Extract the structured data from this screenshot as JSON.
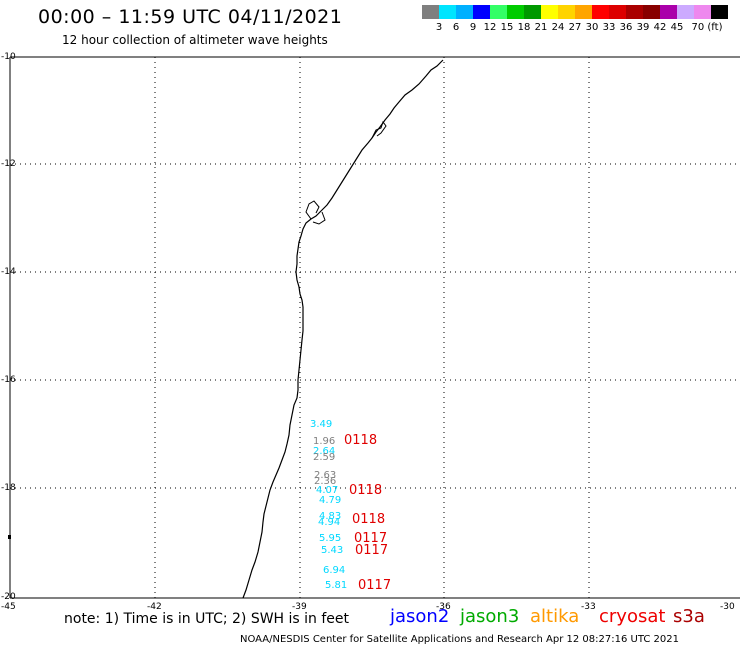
{
  "header": {
    "title": "00:00 – 11:59 UTC 04/11/2021",
    "subtitle": "12 hour collection of altimeter wave heights"
  },
  "scale": {
    "colors": [
      "#7f7f7f",
      "#00e5ff",
      "#00b0ff",
      "#0000ff",
      "#33ff66",
      "#00cc00",
      "#009900",
      "#ffff00",
      "#ffd400",
      "#ffa500",
      "#ff0000",
      "#dd0000",
      "#aa0000",
      "#880000",
      "#aa00aa",
      "#ccaaff",
      "#ee88ee",
      "#000000"
    ],
    "labels": [
      "3",
      "6",
      "9",
      "12",
      "15",
      "18",
      "21",
      "24",
      "27",
      "30",
      "33",
      "36",
      "39",
      "42",
      "45",
      "70 (ft)"
    ]
  },
  "axes": {
    "lat_labels": [
      "-10",
      "-12",
      "-14",
      "-16",
      "-18",
      "-20"
    ],
    "lon_labels": [
      "-45",
      "-42",
      "-39",
      "-36",
      "-33",
      "-30"
    ]
  },
  "observations": [
    {
      "value": "3.49",
      "color": "#00d8ff"
    },
    {
      "value": "1.96",
      "color": "#7f7f7f"
    },
    {
      "value": "2.64",
      "color": "#00d8ff"
    },
    {
      "value": "2.59",
      "color": "#7f7f7f"
    },
    {
      "value": "2.63",
      "color": "#7f7f7f"
    },
    {
      "value": "2.36",
      "color": "#7f7f7f"
    },
    {
      "value": "4.07",
      "color": "#00d8ff"
    },
    {
      "value": "4.79",
      "color": "#00d8ff"
    },
    {
      "value": "4.83",
      "color": "#00d8ff"
    },
    {
      "value": "4.94",
      "color": "#00d8ff"
    },
    {
      "value": "5.95",
      "color": "#00d8ff"
    },
    {
      "value": "5.43",
      "color": "#00d8ff"
    },
    {
      "value": "6.94",
      "color": "#00d8ff"
    },
    {
      "value": "5.81",
      "color": "#00d8ff"
    }
  ],
  "times": [
    "0118",
    "0118",
    "0118",
    "0117",
    "0117",
    "0117"
  ],
  "footer": {
    "note": "note: 1) Time is in UTC; 2) SWH is in feet",
    "satellites": [
      {
        "name": "jason2",
        "color": "#0000ff"
      },
      {
        "name": "jason3",
        "color": "#00aa00"
      },
      {
        "name": "altika",
        "color": "#ff9900"
      },
      {
        "name": "cryosat",
        "color": "#ee0000"
      },
      {
        "name": "s3a",
        "color": "#aa0000"
      }
    ],
    "credit": "NOAA/NESDIS Center for Satellite Applications and Research   Apr 12 08:27:16 UTC 2021"
  }
}
